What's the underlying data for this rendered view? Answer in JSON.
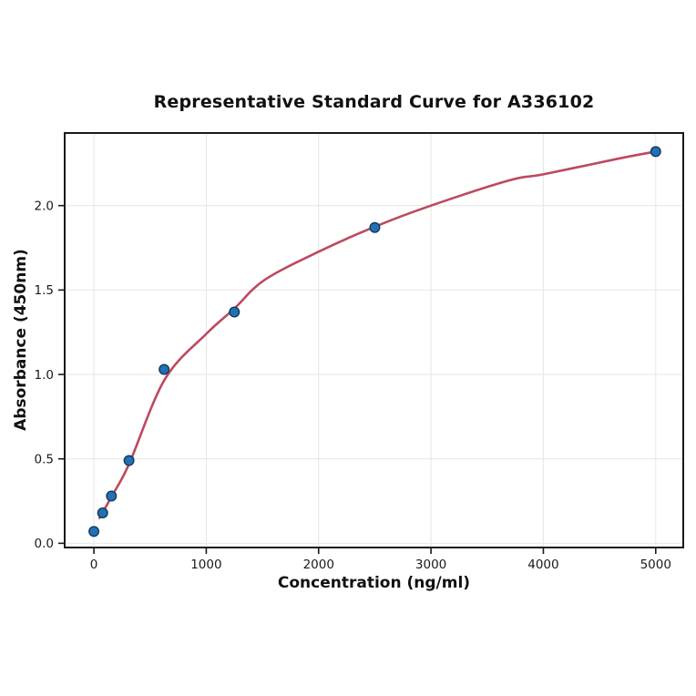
{
  "chart_data": {
    "type": "scatter",
    "title": "Representative Standard Curve for A336102",
    "xlabel": "Concentration (ng/ml)",
    "ylabel": "Absorbance (450nm)",
    "xlim": [
      -260,
      5245
    ],
    "ylim": [
      -0.025,
      2.43
    ],
    "x_ticks": [
      0,
      1000,
      2000,
      3000,
      4000,
      5000
    ],
    "x_tick_labels": [
      "0",
      "1000",
      "2000",
      "3000",
      "4000",
      "5000"
    ],
    "y_ticks": [
      0.0,
      0.5,
      1.0,
      1.5,
      2.0
    ],
    "y_tick_labels": [
      "0.0",
      "0.5",
      "1.0",
      "1.5",
      "2.0"
    ],
    "grid": true,
    "legend": "none",
    "points": [
      {
        "x": 0,
        "y": 0.07
      },
      {
        "x": 78.125,
        "y": 0.18
      },
      {
        "x": 156.25,
        "y": 0.28
      },
      {
        "x": 312.5,
        "y": 0.49
      },
      {
        "x": 625,
        "y": 1.03
      },
      {
        "x": 1250,
        "y": 1.37
      },
      {
        "x": 2500,
        "y": 1.87
      },
      {
        "x": 5000,
        "y": 2.32
      }
    ],
    "fit_curve": [
      {
        "x": 50,
        "y": 0.15
      },
      {
        "x": 160,
        "y": 0.28
      },
      {
        "x": 310,
        "y": 0.465
      },
      {
        "x": 630,
        "y": 0.97
      },
      {
        "x": 1000,
        "y": 1.24
      },
      {
        "x": 1250,
        "y": 1.39
      },
      {
        "x": 1520,
        "y": 1.56
      },
      {
        "x": 2010,
        "y": 1.73
      },
      {
        "x": 2500,
        "y": 1.875
      },
      {
        "x": 3000,
        "y": 2.0
      },
      {
        "x": 3700,
        "y": 2.15
      },
      {
        "x": 4000,
        "y": 2.185
      },
      {
        "x": 4680,
        "y": 2.28
      },
      {
        "x": 5000,
        "y": 2.32
      }
    ],
    "colors": {
      "curve": "#bc4a5e",
      "marker_fill": "#2171b5",
      "marker_edge": "#123a5c",
      "grid": "#e8e8e8",
      "axis": "#1a1a1a",
      "tick_text": "#1a1a1a",
      "background": "#ffffff"
    }
  }
}
